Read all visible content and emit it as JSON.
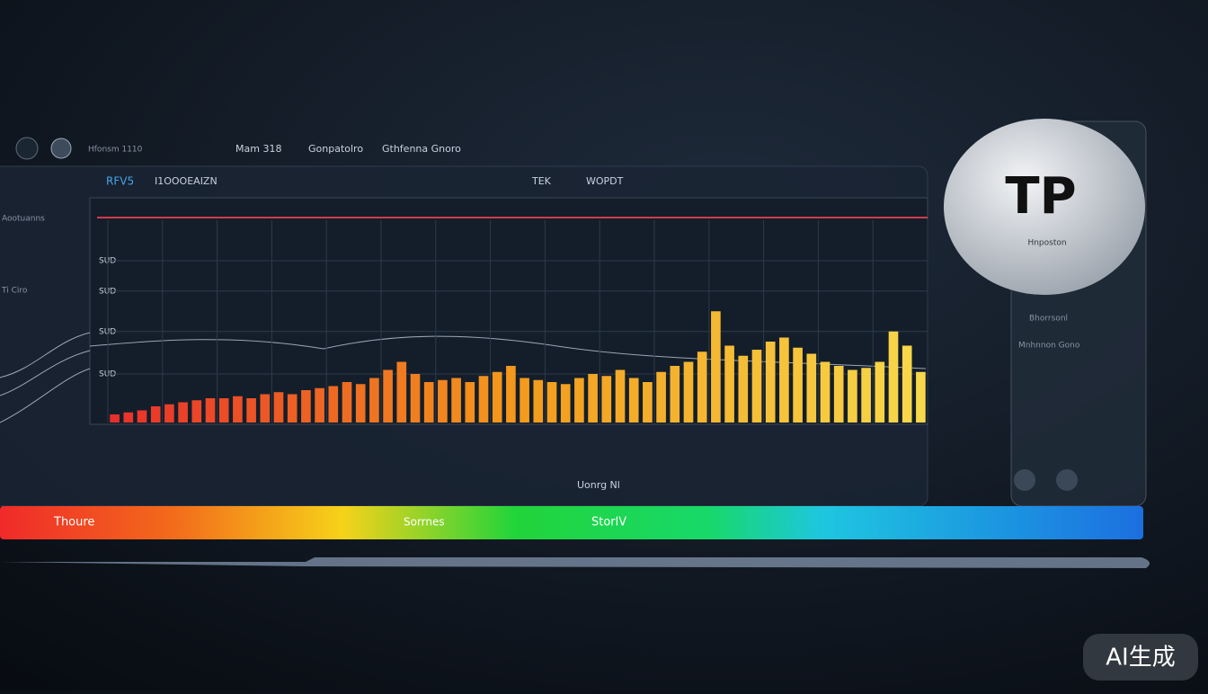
{
  "nav": [
    "Hfonsm 1110",
    "Mam 318",
    "Gonpatolro",
    "Gthfenna Gnoro"
  ],
  "toolbar": [
    "RFV5",
    "I1OOOEAIZN",
    "TEK",
    "WOPDT"
  ],
  "sidebar": [
    "Aootuanns",
    "Ti Ciro"
  ],
  "chart_data": {
    "type": "bar",
    "values": [
      4,
      5,
      6,
      8,
      9,
      10,
      11,
      12,
      12,
      13,
      12,
      14,
      15,
      14,
      16,
      17,
      18,
      20,
      19,
      22,
      26,
      30,
      24,
      20,
      21,
      22,
      20,
      23,
      25,
      28,
      22,
      21,
      20,
      19,
      22,
      24,
      23,
      26,
      22,
      20,
      25,
      28,
      30,
      35,
      55,
      38,
      33,
      36,
      40,
      42,
      37,
      34,
      30,
      28,
      26,
      27,
      30,
      45,
      38,
      25
    ],
    "colors": [
      "#e8302a",
      "#f39a1c",
      "#f7d84a"
    ],
    "ylim": [
      0,
      100
    ],
    "yticks": [
      {
        "value": 24,
        "label": "SUD"
      },
      {
        "value": 45,
        "label": "SUD"
      },
      {
        "value": 65,
        "label": "SUD"
      },
      {
        "value": 80,
        "label": "SUD"
      }
    ],
    "grid": true
  },
  "footer_label": "Uonrg Nl",
  "spectrum": [
    "Thoure",
    "Sorrnes",
    "StorlV"
  ],
  "logo": {
    "title": "TP",
    "subtitle": "Hnposton"
  },
  "side_panel": [
    "Bhorrsonl",
    "Mnhnnon Gono"
  ],
  "badge": "AI生成"
}
